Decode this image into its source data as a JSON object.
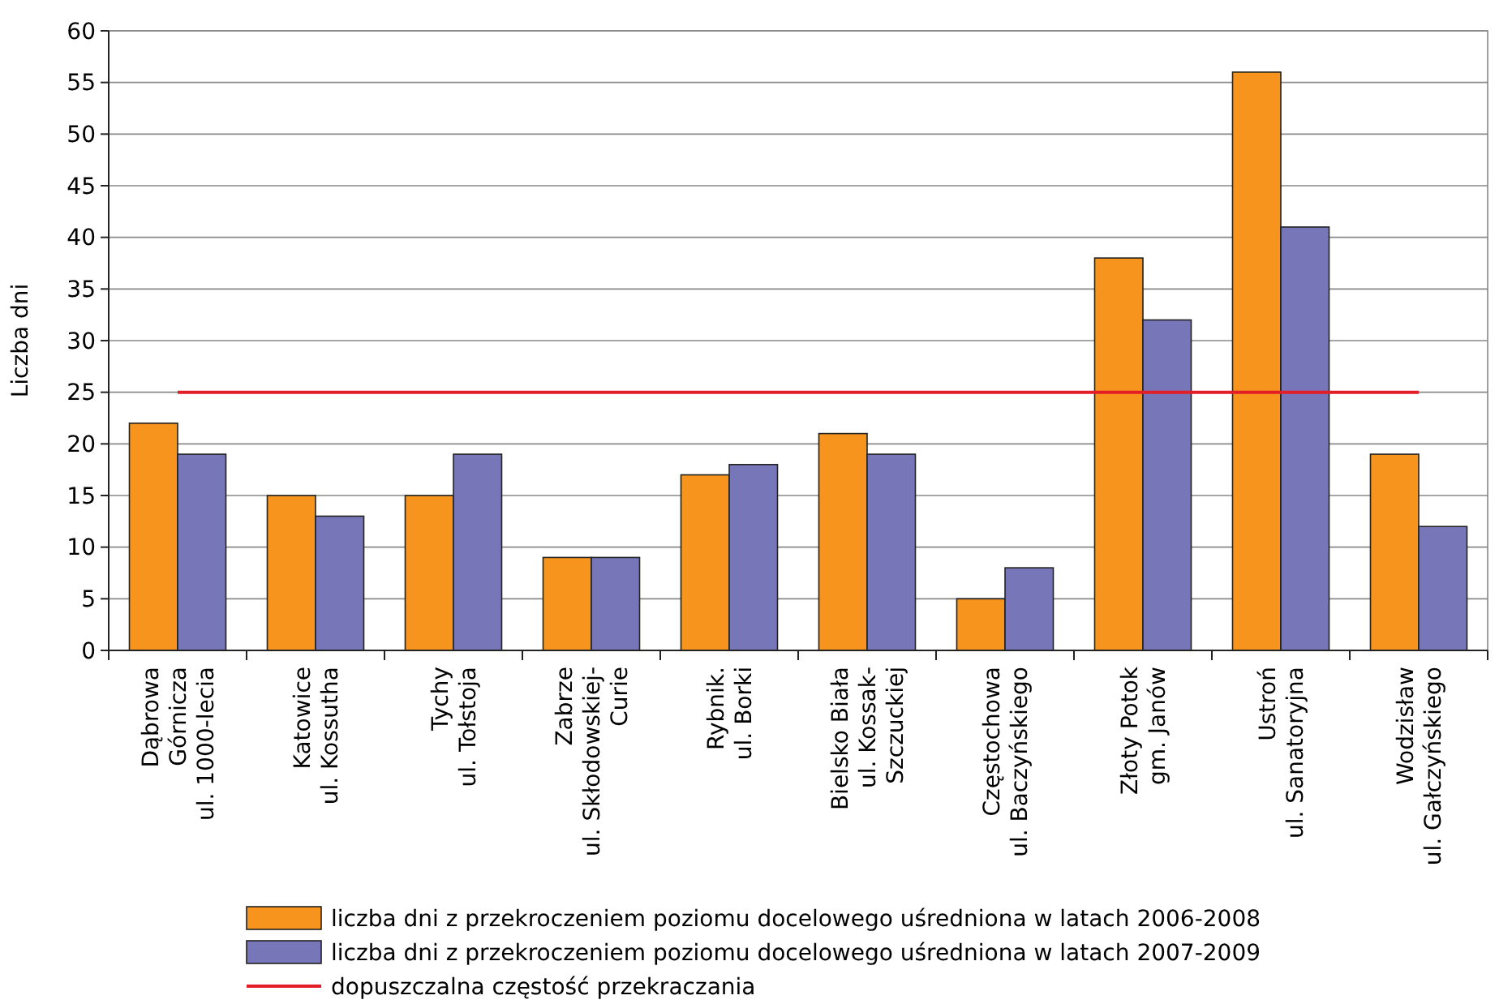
{
  "chart_data": {
    "type": "bar",
    "ylabel": "Liczba dni",
    "categories": [
      "Dąbrowa\nGórnicza\nul. 1000-lecia",
      "Katowice\nul. Kossutha",
      "Tychy\nul. Tołstoja",
      "Zabrze\nul. Skłodowskiej-\nCurie",
      "Rybnik.\nul. Borki",
      "Bielsko Biała\nul. Kossak-\nSzczuckiej",
      "Częstochowa\nul. Baczyńskiego",
      "Złoty Potok\ngm. Janów",
      "Ustroń\nul. Sanatoryjna",
      "Wodzisław\nul. Gałczyńskiego"
    ],
    "series": [
      {
        "name": "liczba dni z przekroczeniem poziomu docelowego uśredniona w latach 2006-2008",
        "color": "#f7941d",
        "values": [
          22,
          15,
          15,
          9,
          17,
          21,
          5,
          38,
          56,
          19
        ]
      },
      {
        "name": "liczba dni z przekroczeniem poziomu docelowego uśredniona w latach 2007-2009",
        "color": "#7776b8",
        "values": [
          19,
          13,
          19,
          9,
          18,
          19,
          8,
          32,
          41,
          12
        ]
      }
    ],
    "ref_lines": [
      {
        "axis": "y",
        "value": 25,
        "label": "dopuszczalna częstość przekraczania",
        "color": "#e41e26"
      }
    ],
    "ylim": [
      0,
      60
    ],
    "yticks": [
      0,
      5,
      10,
      15,
      20,
      25,
      30,
      35,
      40,
      45,
      50,
      55,
      60
    ],
    "grid": "y",
    "legend": "bottom"
  }
}
